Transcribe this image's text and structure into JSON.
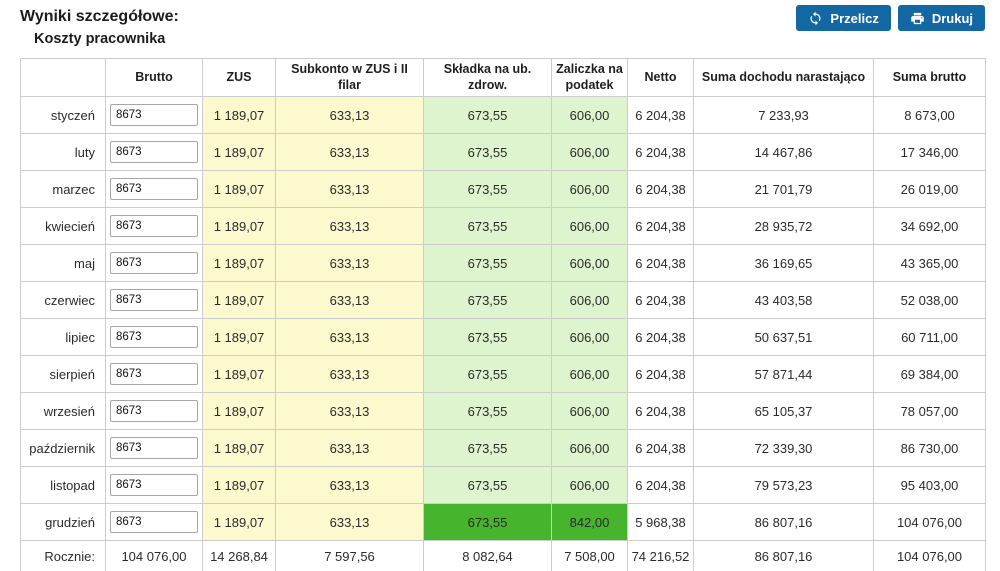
{
  "page": {
    "title": "Wyniki szczegółowe:",
    "subtitle": "Koszty pracownika"
  },
  "toolbar": {
    "recalculate_label": "Przelicz",
    "print_label": "Drukuj"
  },
  "colors": {
    "button_blue": "#1368a4",
    "cell_yellow": "#fcf9cf",
    "cell_green_light": "#def4cf",
    "cell_green_dark": "#47b42e",
    "border_gray": "#cccccc"
  },
  "table": {
    "columns": [
      "",
      "Brutto",
      "ZUS",
      "Subkonto w ZUS i II filar",
      "Składka na ub. zdrow.",
      "Zaliczka na podatek",
      "Netto",
      "Suma dochodu narastająco",
      "Suma brutto"
    ],
    "rows": [
      {
        "month": "styczeń",
        "brutto_input": "8673",
        "zus": "1 189,07",
        "subkonto": "633,13",
        "skladka": "673,55",
        "zaliczka": "606,00",
        "netto": "6 204,38",
        "suma_dochodu": "7 233,93",
        "suma_brutto": "8 673,00",
        "highlight": false
      },
      {
        "month": "luty",
        "brutto_input": "8673",
        "zus": "1 189,07",
        "subkonto": "633,13",
        "skladka": "673,55",
        "zaliczka": "606,00",
        "netto": "6 204,38",
        "suma_dochodu": "14 467,86",
        "suma_brutto": "17 346,00",
        "highlight": false
      },
      {
        "month": "marzec",
        "brutto_input": "8673",
        "zus": "1 189,07",
        "subkonto": "633,13",
        "skladka": "673,55",
        "zaliczka": "606,00",
        "netto": "6 204,38",
        "suma_dochodu": "21 701,79",
        "suma_brutto": "26 019,00",
        "highlight": false
      },
      {
        "month": "kwiecień",
        "brutto_input": "8673",
        "zus": "1 189,07",
        "subkonto": "633,13",
        "skladka": "673,55",
        "zaliczka": "606,00",
        "netto": "6 204,38",
        "suma_dochodu": "28 935,72",
        "suma_brutto": "34 692,00",
        "highlight": false
      },
      {
        "month": "maj",
        "brutto_input": "8673",
        "zus": "1 189,07",
        "subkonto": "633,13",
        "skladka": "673,55",
        "zaliczka": "606,00",
        "netto": "6 204,38",
        "suma_dochodu": "36 169,65",
        "suma_brutto": "43 365,00",
        "highlight": false
      },
      {
        "month": "czerwiec",
        "brutto_input": "8673",
        "zus": "1 189,07",
        "subkonto": "633,13",
        "skladka": "673,55",
        "zaliczka": "606,00",
        "netto": "6 204,38",
        "suma_dochodu": "43 403,58",
        "suma_brutto": "52 038,00",
        "highlight": false
      },
      {
        "month": "lipiec",
        "brutto_input": "8673",
        "zus": "1 189,07",
        "subkonto": "633,13",
        "skladka": "673,55",
        "zaliczka": "606,00",
        "netto": "6 204,38",
        "suma_dochodu": "50 637,51",
        "suma_brutto": "60 711,00",
        "highlight": false
      },
      {
        "month": "sierpień",
        "brutto_input": "8673",
        "zus": "1 189,07",
        "subkonto": "633,13",
        "skladka": "673,55",
        "zaliczka": "606,00",
        "netto": "6 204,38",
        "suma_dochodu": "57 871,44",
        "suma_brutto": "69 384,00",
        "highlight": false
      },
      {
        "month": "wrzesień",
        "brutto_input": "8673",
        "zus": "1 189,07",
        "subkonto": "633,13",
        "skladka": "673,55",
        "zaliczka": "606,00",
        "netto": "6 204,38",
        "suma_dochodu": "65 105,37",
        "suma_brutto": "78 057,00",
        "highlight": false
      },
      {
        "month": "październik",
        "brutto_input": "8673",
        "zus": "1 189,07",
        "subkonto": "633,13",
        "skladka": "673,55",
        "zaliczka": "606,00",
        "netto": "6 204,38",
        "suma_dochodu": "72 339,30",
        "suma_brutto": "86 730,00",
        "highlight": false
      },
      {
        "month": "listopad",
        "brutto_input": "8673",
        "zus": "1 189,07",
        "subkonto": "633,13",
        "skladka": "673,55",
        "zaliczka": "606,00",
        "netto": "6 204,38",
        "suma_dochodu": "79 573,23",
        "suma_brutto": "95 403,00",
        "highlight": false
      },
      {
        "month": "grudzień",
        "brutto_input": "8673",
        "zus": "1 189,07",
        "subkonto": "633,13",
        "skladka": "673,55",
        "zaliczka": "842,00",
        "netto": "5 968,38",
        "suma_dochodu": "86 807,16",
        "suma_brutto": "104 076,00",
        "highlight": true
      }
    ],
    "summary": {
      "label": "Rocznie:",
      "brutto": "104 076,00",
      "zus": "14 268,84",
      "subkonto": "7 597,56",
      "skladka": "8 082,64",
      "zaliczka": "7 508,00",
      "netto": "74 216,52",
      "suma_dochodu": "86 807,16",
      "suma_brutto": "104 076,00"
    }
  }
}
